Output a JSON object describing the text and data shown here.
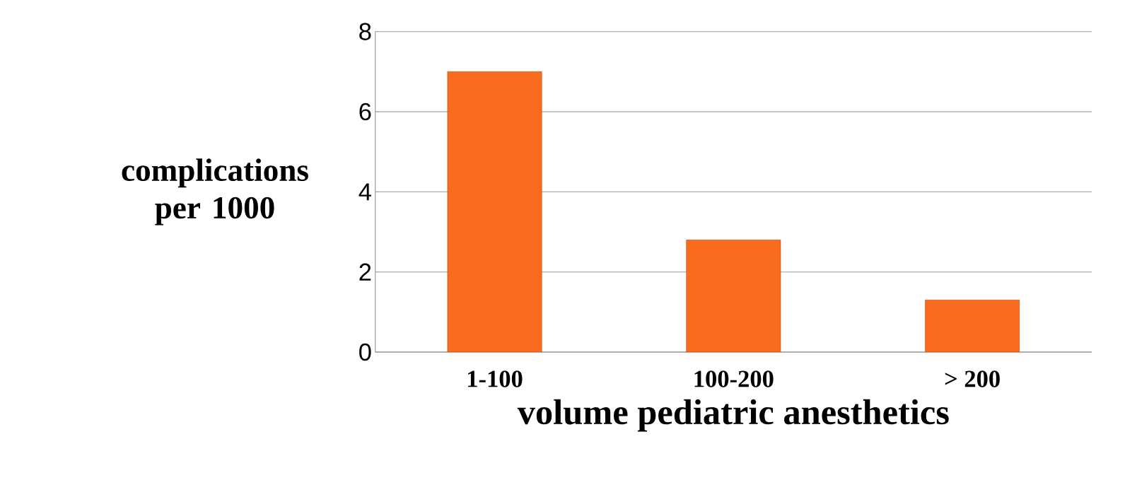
{
  "chart_data": {
    "type": "bar",
    "xlabel": "volume pediatric anesthetics",
    "ylabel": "complications per 1000",
    "categories": [
      "1-100",
      "100-200",
      "> 200"
    ],
    "values": [
      7.0,
      2.8,
      1.3
    ],
    "color": "#f96b1e",
    "ylim": [
      0,
      8
    ],
    "yticks": [
      0,
      2,
      4,
      6,
      8
    ],
    "grid": "y"
  }
}
